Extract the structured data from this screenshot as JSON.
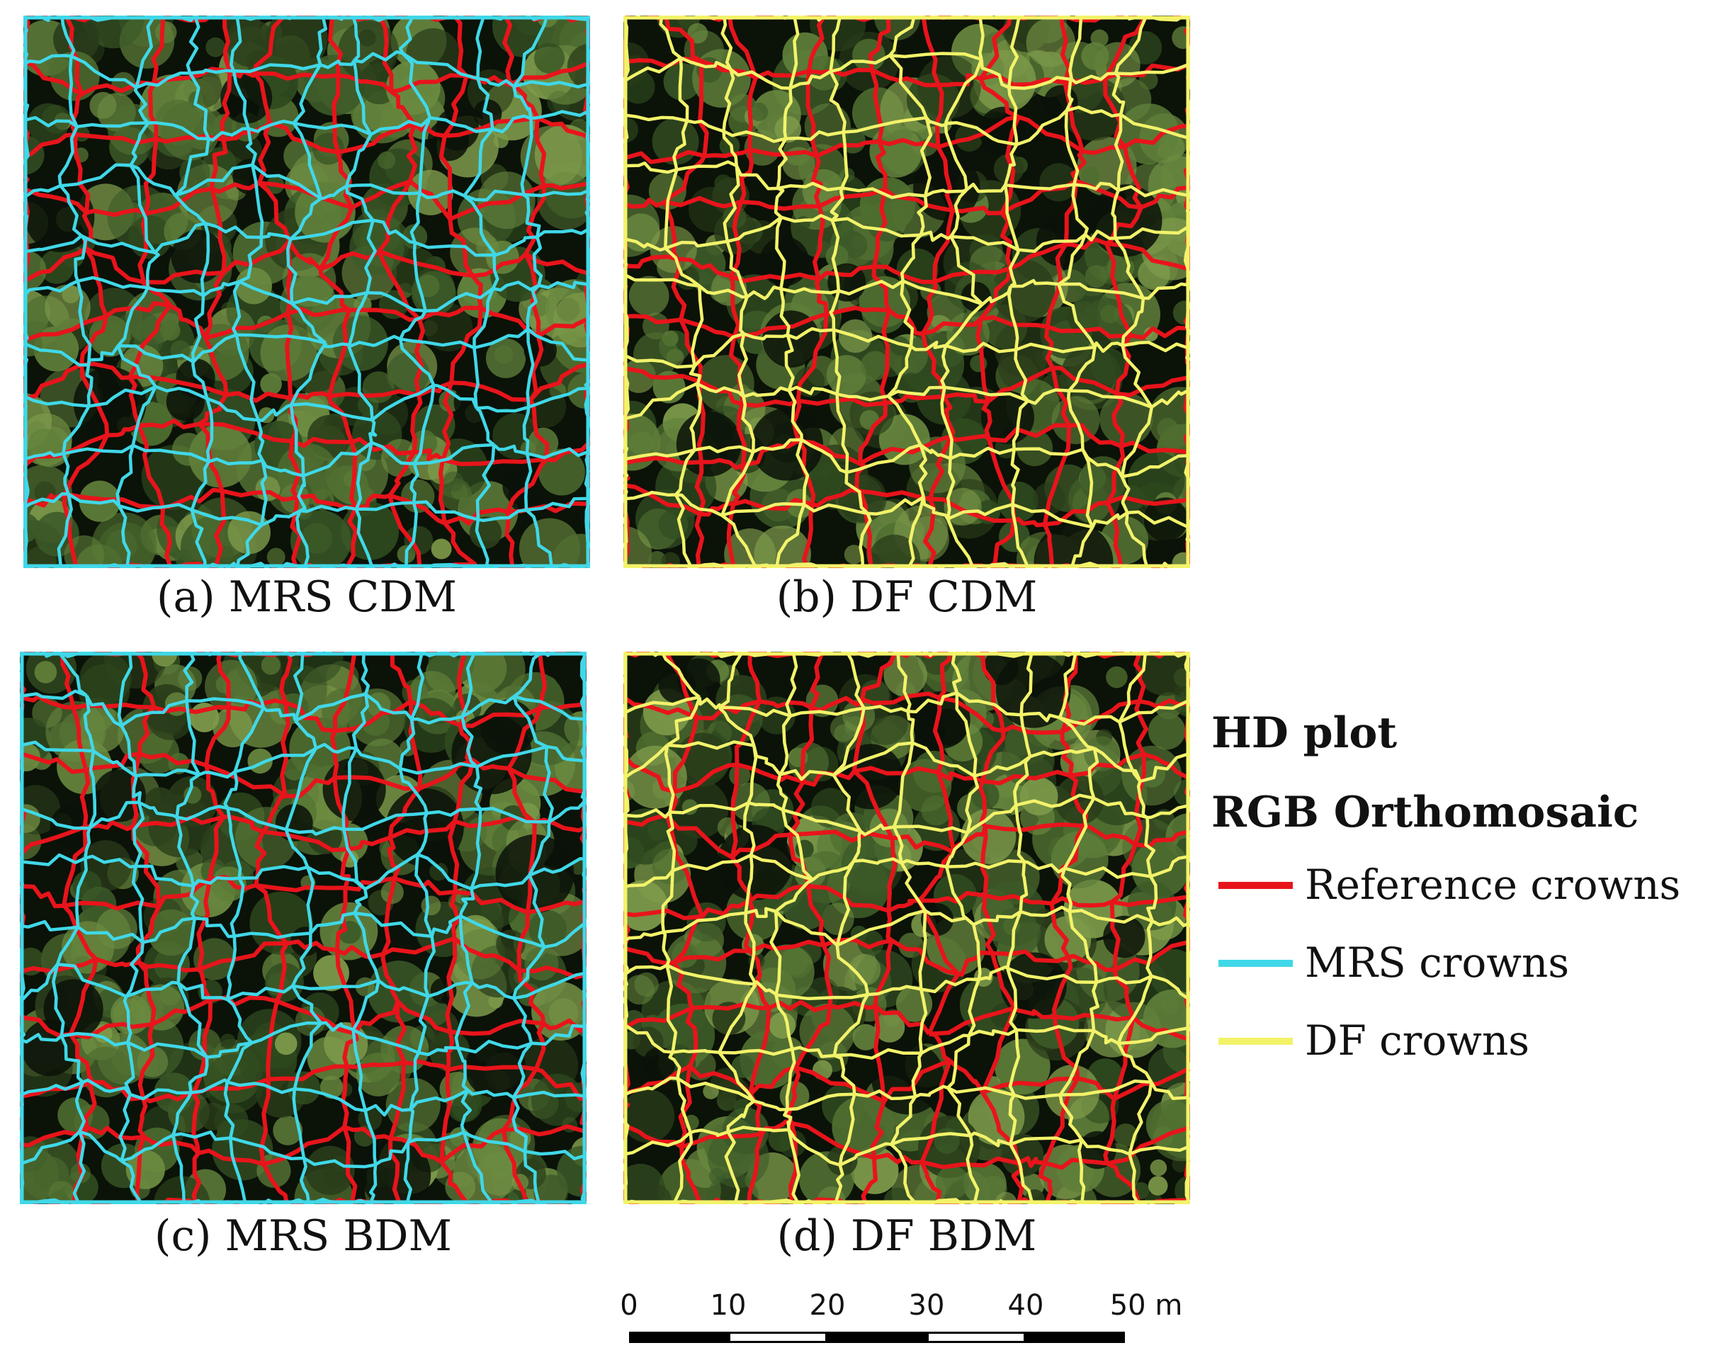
{
  "panels": [
    {
      "caption": "(a) MRS CDM",
      "crown_color": "#40d8e8"
    },
    {
      "caption": "(b) DF CDM",
      "crown_color": "#f3f36a"
    },
    {
      "caption": "(c) MRS BDM",
      "crown_color": "#40d8e8"
    },
    {
      "caption": "(d) DF BDM",
      "crown_color": "#f3f36a"
    }
  ],
  "legend": {
    "title_line1": "HD plot",
    "title_line2": "RGB Orthomosaic",
    "items": [
      {
        "label": "Reference crowns",
        "color": "#e8141b"
      },
      {
        "label": "MRS crowns",
        "color": "#40d8e8"
      },
      {
        "label": "DF crowns",
        "color": "#f3f36a"
      }
    ]
  },
  "scalebar": {
    "ticks": [
      "0",
      "10",
      "20",
      "30",
      "40",
      "50 m"
    ],
    "unit": "m"
  },
  "colors": {
    "reference": "#e8141b",
    "canopy_dark": "#0b1208",
    "canopy_mid": "#3c5a28",
    "canopy_light": "#7d9a4a"
  }
}
